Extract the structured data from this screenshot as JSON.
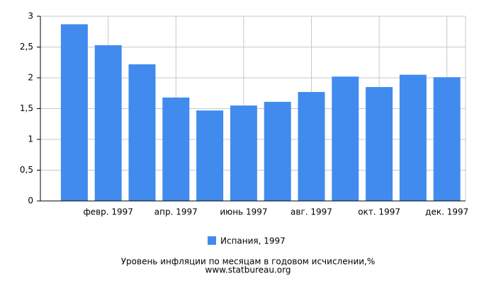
{
  "chart_data": {
    "type": "bar",
    "categories": [
      null,
      "февр. 1997",
      null,
      "апр. 1997",
      null,
      "июнь 1997",
      null,
      "авг. 1997",
      null,
      "окт. 1997",
      null,
      "дек. 1997"
    ],
    "series": [
      {
        "name": "Испания, 1997",
        "color": "#418bee",
        "values": [
          2.87,
          2.53,
          2.22,
          1.68,
          1.47,
          1.55,
          1.61,
          1.77,
          2.02,
          1.85,
          2.05,
          2.01
        ]
      }
    ],
    "ylim": [
      0,
      3
    ],
    "yticks": [
      0,
      {
        "value": 0.5,
        "label": "0,5"
      },
      1,
      {
        "value": 1.5,
        "label": "1,5"
      },
      2,
      {
        "value": 2.5,
        "label": "2,5"
      },
      3
    ],
    "grid": true,
    "footer": [
      "Уровень инфляции по месяцам в годовом исчислении,%",
      "www.statbureau.org"
    ]
  }
}
